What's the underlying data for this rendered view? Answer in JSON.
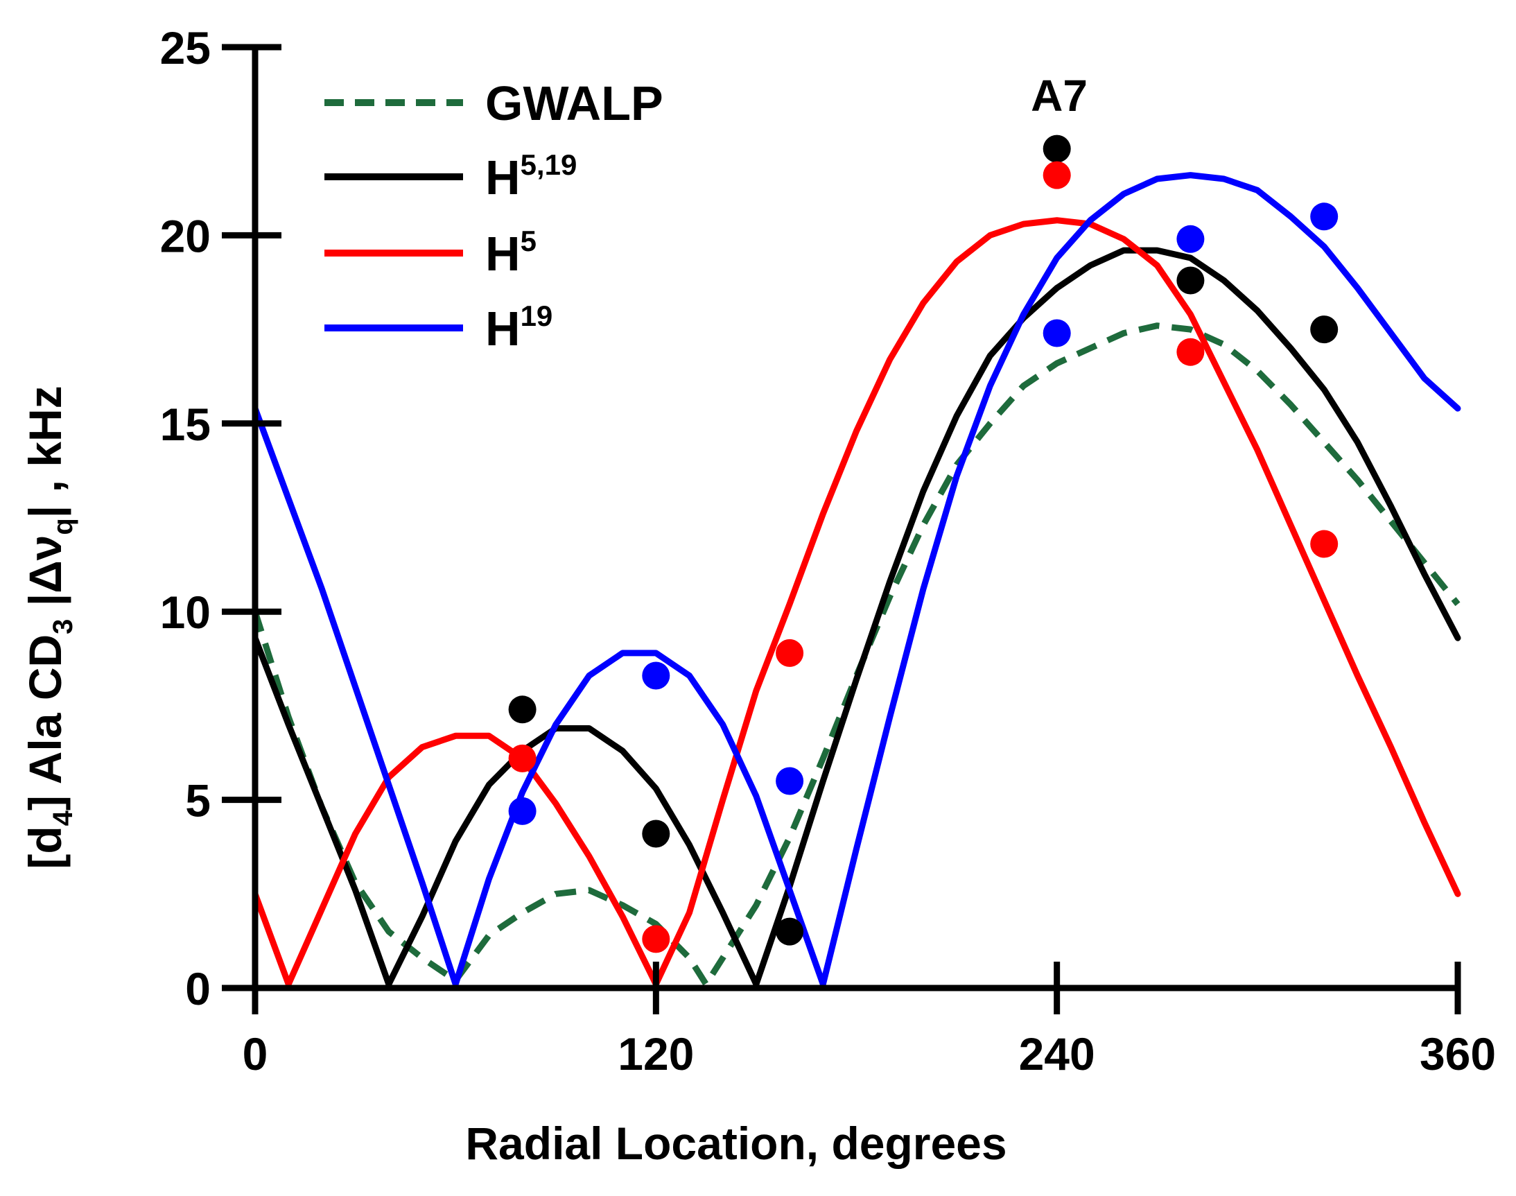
{
  "chart_data": {
    "type": "line",
    "annotation": "A7",
    "xlabel": "Radial Location, degrees",
    "ylabel": {
      "part1": "[d",
      "sub1": "4",
      "part2": "] Ala CD",
      "sub2": "3",
      "part3": " |Δν",
      "sub3": "q",
      "part4": "| , kHz"
    },
    "xlim": [
      0,
      360
    ],
    "ylim": [
      0,
      25
    ],
    "xticks": [
      "0",
      "120",
      "240",
      "360"
    ],
    "yticks": [
      "0",
      "5",
      "10",
      "15",
      "20",
      "25"
    ],
    "legend": [
      {
        "base": "GWALP",
        "sup": "",
        "color": "#1e6b3c",
        "dashed": true
      },
      {
        "base": "H",
        "sup": "5,19",
        "color": "#000000",
        "dashed": false
      },
      {
        "base": "H",
        "sup": "5",
        "color": "#ff0000",
        "dashed": false
      },
      {
        "base": "H",
        "sup": "19",
        "color": "#0000ff",
        "dashed": false
      }
    ],
    "series": [
      {
        "name": "GWALP",
        "color": "#1e6b3c",
        "dashed": true,
        "curve": [
          [
            0,
            10
          ],
          [
            10,
            7.2
          ],
          [
            20,
            4.8
          ],
          [
            30,
            2.8
          ],
          [
            40,
            1.5
          ],
          [
            50,
            0.8
          ],
          [
            60,
            0.2
          ],
          [
            70,
            1.4
          ],
          [
            80,
            2.0
          ],
          [
            90,
            2.5
          ],
          [
            100,
            2.6
          ],
          [
            110,
            2.2
          ],
          [
            120,
            1.7
          ],
          [
            130,
            0.8
          ],
          [
            135,
            0.1
          ],
          [
            140,
            0.8
          ],
          [
            150,
            2.2
          ],
          [
            160,
            4.0
          ],
          [
            170,
            6.1
          ],
          [
            180,
            8.3
          ],
          [
            190,
            10.4
          ],
          [
            200,
            12.3
          ],
          [
            210,
            13.9
          ],
          [
            220,
            15.0
          ],
          [
            230,
            16.0
          ],
          [
            240,
            16.6
          ],
          [
            250,
            17.0
          ],
          [
            260,
            17.4
          ],
          [
            270,
            17.6
          ],
          [
            280,
            17.5
          ],
          [
            290,
            17.1
          ],
          [
            300,
            16.4
          ],
          [
            310,
            15.5
          ],
          [
            320,
            14.5
          ],
          [
            330,
            13.5
          ],
          [
            340,
            12.4
          ],
          [
            350,
            11.3
          ],
          [
            360,
            10.2
          ]
        ],
        "points": []
      },
      {
        "name": "H5,19",
        "color": "#000000",
        "dashed": false,
        "curve": [
          [
            0,
            9.3
          ],
          [
            10,
            7.0
          ],
          [
            20,
            4.8
          ],
          [
            30,
            2.6
          ],
          [
            40,
            0.1
          ],
          [
            50,
            1.9
          ],
          [
            60,
            3.9
          ],
          [
            70,
            5.4
          ],
          [
            80,
            6.3
          ],
          [
            90,
            6.9
          ],
          [
            100,
            6.9
          ],
          [
            110,
            6.3
          ],
          [
            120,
            5.3
          ],
          [
            130,
            3.8
          ],
          [
            140,
            2.0
          ],
          [
            150,
            0.1
          ],
          [
            160,
            2.7
          ],
          [
            170,
            5.5
          ],
          [
            180,
            8.2
          ],
          [
            190,
            10.8
          ],
          [
            200,
            13.2
          ],
          [
            210,
            15.2
          ],
          [
            220,
            16.8
          ],
          [
            230,
            17.8
          ],
          [
            240,
            18.6
          ],
          [
            250,
            19.2
          ],
          [
            260,
            19.6
          ],
          [
            270,
            19.6
          ],
          [
            280,
            19.4
          ],
          [
            290,
            18.8
          ],
          [
            300,
            18.0
          ],
          [
            310,
            17.0
          ],
          [
            320,
            15.9
          ],
          [
            330,
            14.5
          ],
          [
            340,
            12.8
          ],
          [
            350,
            11.0
          ],
          [
            360,
            9.3
          ]
        ],
        "points": [
          [
            80,
            7.4
          ],
          [
            120,
            4.1
          ],
          [
            160,
            1.5
          ],
          [
            240,
            22.3
          ],
          [
            280,
            18.8
          ],
          [
            320,
            17.5
          ]
        ]
      },
      {
        "name": "H5",
        "color": "#ff0000",
        "dashed": false,
        "curve": [
          [
            0,
            2.5
          ],
          [
            10,
            0.1
          ],
          [
            20,
            2.1
          ],
          [
            30,
            4.1
          ],
          [
            40,
            5.6
          ],
          [
            50,
            6.4
          ],
          [
            60,
            6.7
          ],
          [
            70,
            6.7
          ],
          [
            80,
            6.1
          ],
          [
            90,
            4.9
          ],
          [
            100,
            3.5
          ],
          [
            110,
            1.9
          ],
          [
            120,
            0.1
          ],
          [
            130,
            2.0
          ],
          [
            140,
            5.0
          ],
          [
            150,
            7.9
          ],
          [
            160,
            10.2
          ],
          [
            170,
            12.6
          ],
          [
            180,
            14.8
          ],
          [
            190,
            16.7
          ],
          [
            200,
            18.2
          ],
          [
            210,
            19.3
          ],
          [
            220,
            20.0
          ],
          [
            230,
            20.3
          ],
          [
            240,
            20.4
          ],
          [
            250,
            20.3
          ],
          [
            260,
            19.9
          ],
          [
            270,
            19.2
          ],
          [
            280,
            17.9
          ],
          [
            290,
            16.1
          ],
          [
            300,
            14.3
          ],
          [
            310,
            12.3
          ],
          [
            320,
            10.3
          ],
          [
            330,
            8.3
          ],
          [
            340,
            6.4
          ],
          [
            350,
            4.4
          ],
          [
            360,
            2.5
          ]
        ],
        "points": [
          [
            80,
            6.1
          ],
          [
            120,
            1.3
          ],
          [
            160,
            8.9
          ],
          [
            240,
            21.6
          ],
          [
            280,
            16.9
          ],
          [
            320,
            11.8
          ]
        ]
      },
      {
        "name": "H19",
        "color": "#0000ff",
        "dashed": false,
        "curve": [
          [
            0,
            15.4
          ],
          [
            10,
            13.0
          ],
          [
            20,
            10.6
          ],
          [
            30,
            8.0
          ],
          [
            40,
            5.4
          ],
          [
            50,
            2.8
          ],
          [
            60,
            0.1
          ],
          [
            70,
            2.9
          ],
          [
            80,
            5.2
          ],
          [
            90,
            7.0
          ],
          [
            100,
            8.3
          ],
          [
            110,
            8.9
          ],
          [
            120,
            8.9
          ],
          [
            130,
            8.3
          ],
          [
            140,
            7.0
          ],
          [
            150,
            5.1
          ],
          [
            160,
            2.6
          ],
          [
            170,
            0.1
          ],
          [
            180,
            3.7
          ],
          [
            190,
            7.2
          ],
          [
            200,
            10.6
          ],
          [
            210,
            13.6
          ],
          [
            220,
            16.0
          ],
          [
            230,
            17.9
          ],
          [
            240,
            19.4
          ],
          [
            250,
            20.4
          ],
          [
            260,
            21.1
          ],
          [
            270,
            21.5
          ],
          [
            280,
            21.6
          ],
          [
            290,
            21.5
          ],
          [
            300,
            21.2
          ],
          [
            310,
            20.5
          ],
          [
            320,
            19.7
          ],
          [
            330,
            18.6
          ],
          [
            340,
            17.4
          ],
          [
            350,
            16.2
          ],
          [
            360,
            15.4
          ]
        ],
        "points": [
          [
            80,
            4.7
          ],
          [
            120,
            8.3
          ],
          [
            160,
            5.5
          ],
          [
            240,
            17.4
          ],
          [
            280,
            19.9
          ],
          [
            320,
            20.5
          ]
        ]
      }
    ]
  }
}
